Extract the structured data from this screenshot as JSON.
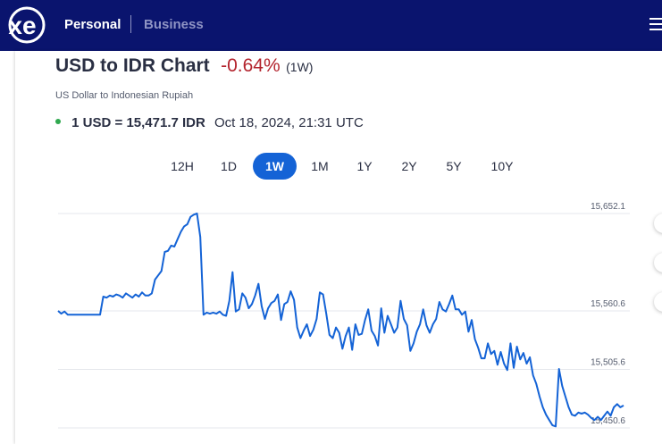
{
  "header": {
    "logo_text": "xe",
    "nav": {
      "personal": "Personal",
      "business": "Business"
    },
    "colors": {
      "background": "#0a146e",
      "inactive": "#8f94c4"
    }
  },
  "chart_header": {
    "title": "USD to IDR Chart",
    "change": "-0.64%",
    "period": "(1W)",
    "subtitle": "US Dollar to Indonesian Rupiah",
    "rate": "1 USD = 15,471.7 IDR",
    "timestamp": "Oct 18, 2024, 21:31 UTC"
  },
  "tabs": [
    {
      "label": "12H",
      "active": false
    },
    {
      "label": "1D",
      "active": false
    },
    {
      "label": "1W",
      "active": true
    },
    {
      "label": "1M",
      "active": false
    },
    {
      "label": "1Y",
      "active": false
    },
    {
      "label": "2Y",
      "active": false
    },
    {
      "label": "5Y",
      "active": false
    },
    {
      "label": "10Y",
      "active": false
    }
  ],
  "chart_data": {
    "type": "line",
    "series": [
      {
        "values": [
          15560.6,
          15558,
          15560,
          15557,
          15557,
          15557,
          15557,
          15557,
          15557,
          15557,
          15557,
          15557,
          15557,
          15557,
          15574,
          15573,
          15575,
          15574,
          15576,
          15575,
          15573,
          15577,
          15575,
          15573,
          15576,
          15574,
          15578,
          15575,
          15575,
          15577,
          15590,
          15594,
          15598,
          15616,
          15617,
          15622,
          15621,
          15628,
          15635,
          15640,
          15642,
          15649,
          15651,
          15652.1,
          15630,
          15557,
          15559,
          15558,
          15559,
          15558,
          15560,
          15557,
          15556,
          15570,
          15597,
          15560,
          15562,
          15577,
          15573,
          15563,
          15567,
          15575,
          15586,
          15565,
          15553,
          15563,
          15568,
          15570,
          15576,
          15552,
          15567,
          15569,
          15579,
          15571,
          15545,
          15535,
          15542,
          15548,
          15537,
          15543,
          15553,
          15578,
          15576,
          15558,
          15538,
          15535,
          15545,
          15540,
          15525,
          15537,
          15545,
          15524,
          15548,
          15538,
          15539,
          15552,
          15562,
          15542,
          15537,
          15528,
          15563,
          15540,
          15556,
          15548,
          15540,
          15545,
          15570,
          15553,
          15547,
          15523,
          15530,
          15541,
          15548,
          15562,
          15547,
          15540,
          15548,
          15553,
          15569,
          15562,
          15560,
          15567,
          15575,
          15562,
          15562,
          15557,
          15560,
          15541,
          15552,
          15534,
          15526,
          15516,
          15516,
          15530,
          15520,
          15523,
          15510,
          15522,
          15511,
          15505,
          15530,
          15507,
          15527,
          15515,
          15521,
          15511,
          15517,
          15500,
          15492,
          15480,
          15470,
          15463,
          15458,
          15453,
          15452,
          15506,
          15490,
          15480,
          15470,
          15463,
          15462,
          15465,
          15464,
          15465,
          15463,
          15460,
          15458,
          15461,
          15458,
          15462,
          15466,
          15462,
          15470,
          15473,
          15470,
          15471.7
        ]
      }
    ],
    "y_ticks": [
      "15,652.1",
      "15,560.6",
      "15,505.6",
      "15,450.6"
    ],
    "y_tick_values": [
      15652.1,
      15560.6,
      15505.6,
      15450.6
    ],
    "color": "#1463d6",
    "grid": "horizontal"
  }
}
